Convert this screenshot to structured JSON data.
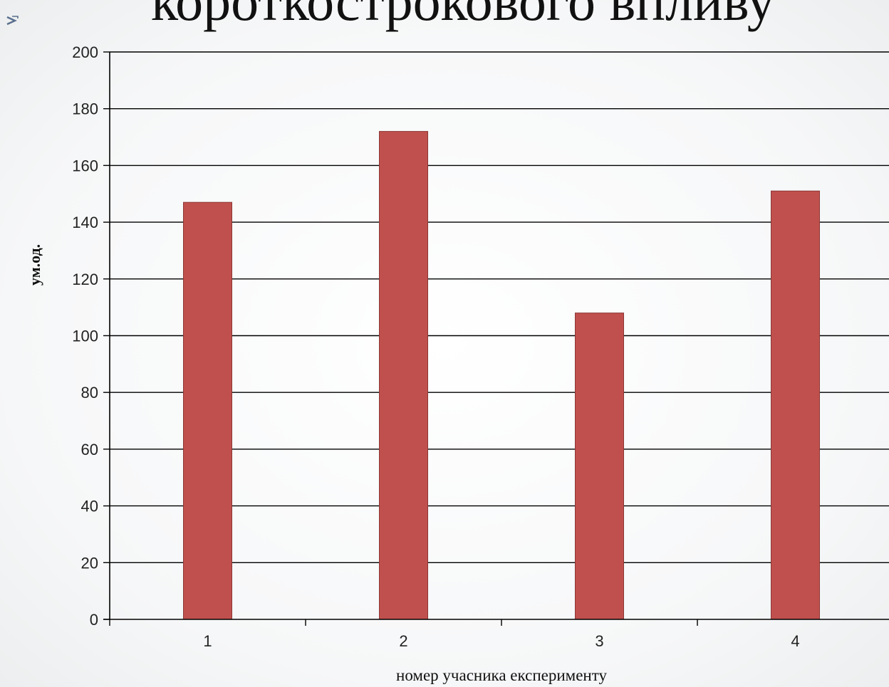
{
  "slide": {
    "title": "короткострокового впливу"
  },
  "chart_data": {
    "type": "bar",
    "categories": [
      "1",
      "2",
      "3",
      "4"
    ],
    "values": [
      147,
      172,
      108,
      151
    ],
    "xlabel": "номер учасника експерименту",
    "ylabel": "ум.од.",
    "ylim": [
      0,
      200
    ],
    "y_ticks": [
      0,
      20,
      40,
      60,
      80,
      100,
      120,
      140,
      160,
      180,
      200
    ],
    "grid": true,
    "bar_color": "#c0504d",
    "bar_edge_color": "#8c3836",
    "grid_color": "#000000"
  }
}
